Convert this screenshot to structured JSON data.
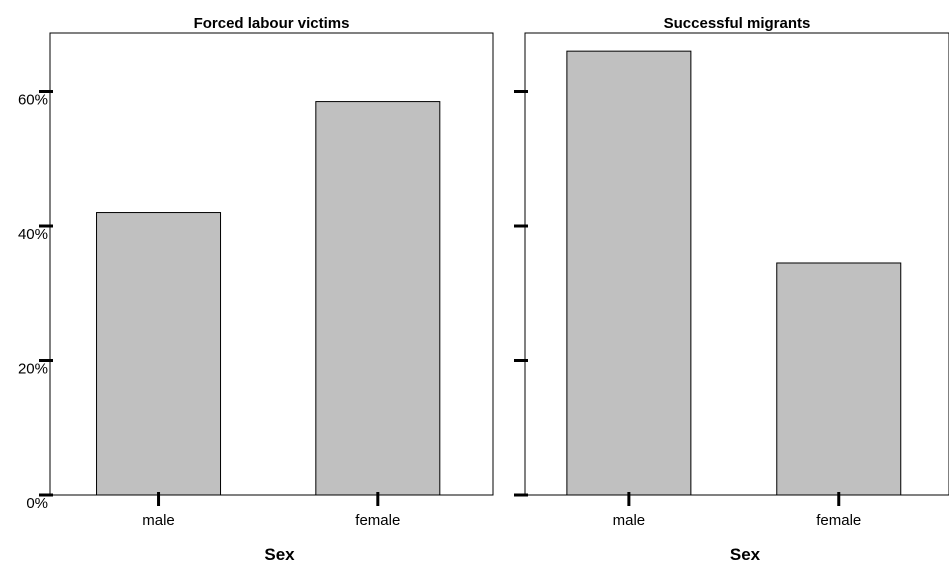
{
  "chart_data": {
    "type": "bar",
    "panels": [
      {
        "title": "Forced labour victims",
        "categories": [
          "male",
          "female"
        ],
        "values": [
          42,
          58.5
        ],
        "y_tick_labels": [
          "0%",
          "20%",
          "40%",
          "60%"
        ]
      },
      {
        "title": "Successful migrants",
        "categories": [
          "male",
          "female"
        ],
        "values": [
          66,
          34.5
        ],
        "y_tick_labels": []
      }
    ],
    "y_ticks": [
      0,
      20,
      40,
      60
    ],
    "ylim": [
      0,
      70
    ],
    "xlabel": "Sex",
    "ylabel": "",
    "grid": false,
    "legend": "none",
    "colors": {
      "bar_fill": "#c0c0c0",
      "bar_stroke": "#000000",
      "frame": "#000000",
      "background": "#ffffff"
    }
  }
}
